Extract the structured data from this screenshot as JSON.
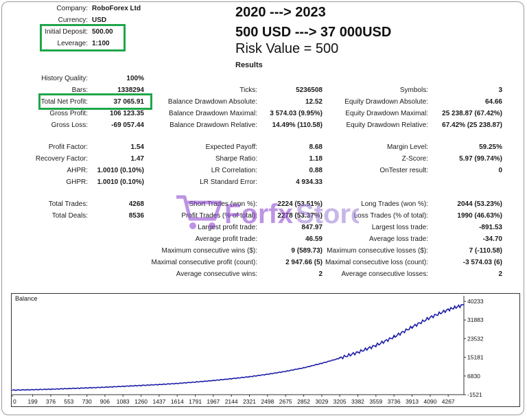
{
  "header": {
    "company_label": "Company:",
    "company_value": "RoboForex Ltd",
    "currency_label": "Currency:",
    "currency_value": "USD",
    "deposit_label": "Initial Deposit:",
    "deposit_value": "500.00",
    "leverage_label": "Leverage:",
    "leverage_value": "1:100"
  },
  "headline": {
    "line1": "2020 ---> 2023",
    "line2": "500 USD ---> 37 000USD",
    "line3": "Risk Value = 500"
  },
  "results_title": "Results",
  "stats": [
    {
      "label": "History Quality:",
      "value": "100%"
    },
    {
      "label": "Bars:",
      "value": "1338294"
    },
    {
      "label": "Total Net Profit:",
      "value": "37 065.91"
    },
    {
      "label": "Gross Profit:",
      "value": "106 123.35"
    },
    {
      "label": "Gross Loss:",
      "value": "-69 057.44"
    },
    {
      "label": "Ticks:",
      "value": "5236508"
    },
    {
      "label": "Balance Drawdown Absolute:",
      "value": "12.52"
    },
    {
      "label": "Balance Drawdown Maximal:",
      "value": "3 574.03 (9.95%)"
    },
    {
      "label": "Balance Drawdown Relative:",
      "value": "14.49% (110.58)"
    },
    {
      "label": "Symbols:",
      "value": "3"
    },
    {
      "label": "Equity Drawdown Absolute:",
      "value": "64.66"
    },
    {
      "label": "Equity Drawdown Maximal:",
      "value": "25 238.87 (67.42%)"
    },
    {
      "label": "Equity Drawdown Relative:",
      "value": "67.42% (25 238.87)"
    },
    {
      "label": "Profit Factor:",
      "value": "1.54"
    },
    {
      "label": "Recovery Factor:",
      "value": "1.47"
    },
    {
      "label": "AHPR:",
      "value": "1.0010 (0.10%)"
    },
    {
      "label": "GHPR:",
      "value": "1.0010 (0.10%)"
    },
    {
      "label": "Expected Payoff:",
      "value": "8.68"
    },
    {
      "label": "Sharpe Ratio:",
      "value": "1.18"
    },
    {
      "label": "LR Correlation:",
      "value": "0.88"
    },
    {
      "label": "LR Standard Error:",
      "value": "4 934.33"
    },
    {
      "label": "Margin Level:",
      "value": "59.25%"
    },
    {
      "label": "Z-Score:",
      "value": "5.97 (99.74%)"
    },
    {
      "label": "OnTester result:",
      "value": "0"
    },
    {
      "label": "Total Trades:",
      "value": "4268"
    },
    {
      "label": "Total Deals:",
      "value": "8536"
    },
    {
      "label": "Short Trades (won %):",
      "value": "2224 (53.51%)"
    },
    {
      "label": "Profit Trades (% of total):",
      "value": "2278 (53.37%)"
    },
    {
      "label": "Largest profit trade:",
      "value": "847.97"
    },
    {
      "label": "Average profit trade:",
      "value": "46.59"
    },
    {
      "label": "Maximum consecutive wins ($):",
      "value": "9 (589.73)"
    },
    {
      "label": "Maximal consecutive profit (count):",
      "value": "2 947.66 (5)"
    },
    {
      "label": "Average consecutive wins:",
      "value": "2"
    },
    {
      "label": "Long Trades (won %):",
      "value": "2044 (53.23%)"
    },
    {
      "label": "Loss Trades (% of total):",
      "value": "1990 (46.63%)"
    },
    {
      "label": "Largest loss trade:",
      "value": "-891.53"
    },
    {
      "label": "Average loss trade:",
      "value": "-34.70"
    },
    {
      "label": "Maximum consecutive losses ($):",
      "value": "7 (-110.58)"
    },
    {
      "label": "Maximal consecutive loss (count):",
      "value": "-3 574.03 (6)"
    },
    {
      "label": "Average consecutive losses:",
      "value": "2"
    }
  ],
  "watermark": {
    "brand_a": "Forfx",
    "brand_b": "Store"
  },
  "colors": {
    "balance_line": "#1c1ca8",
    "highlight_box": "#1fa64a",
    "watermark": "#8a3bd1"
  },
  "chart_data": {
    "type": "line",
    "title": "Balance",
    "xlabel": "",
    "ylabel": "",
    "x_ticks": [
      "0",
      "199",
      "376",
      "553",
      "730",
      "906",
      "1083",
      "1260",
      "1437",
      "1614",
      "1791",
      "1967",
      "2144",
      "2321",
      "2498",
      "2675",
      "2852",
      "3029",
      "3205",
      "3382",
      "3559",
      "3736",
      "3913",
      "4090",
      "4267"
    ],
    "y_ticks": [
      "40233",
      "31883",
      "23532",
      "15181",
      "6830",
      "-1521"
    ],
    "xlim": [
      0,
      4420
    ],
    "ylim": [
      -1521,
      40233
    ],
    "grid": false,
    "series": [
      {
        "name": "",
        "x": [
          0,
          199,
          376,
          553,
          730,
          906,
          1083,
          1260,
          1437,
          1614,
          1791,
          1967,
          2144,
          2321,
          2498,
          2675,
          2852,
          3029,
          3205,
          3382,
          3559,
          3736,
          3913,
          4090,
          4267,
          4420
        ],
        "y": [
          500,
          700,
          900,
          1200,
          1500,
          1800,
          2200,
          2600,
          3000,
          3500,
          4100,
          4800,
          5600,
          6500,
          7600,
          8900,
          10500,
          12500,
          14800,
          17400,
          20500,
          24300,
          28700,
          33000,
          36500,
          38700
        ]
      }
    ]
  }
}
